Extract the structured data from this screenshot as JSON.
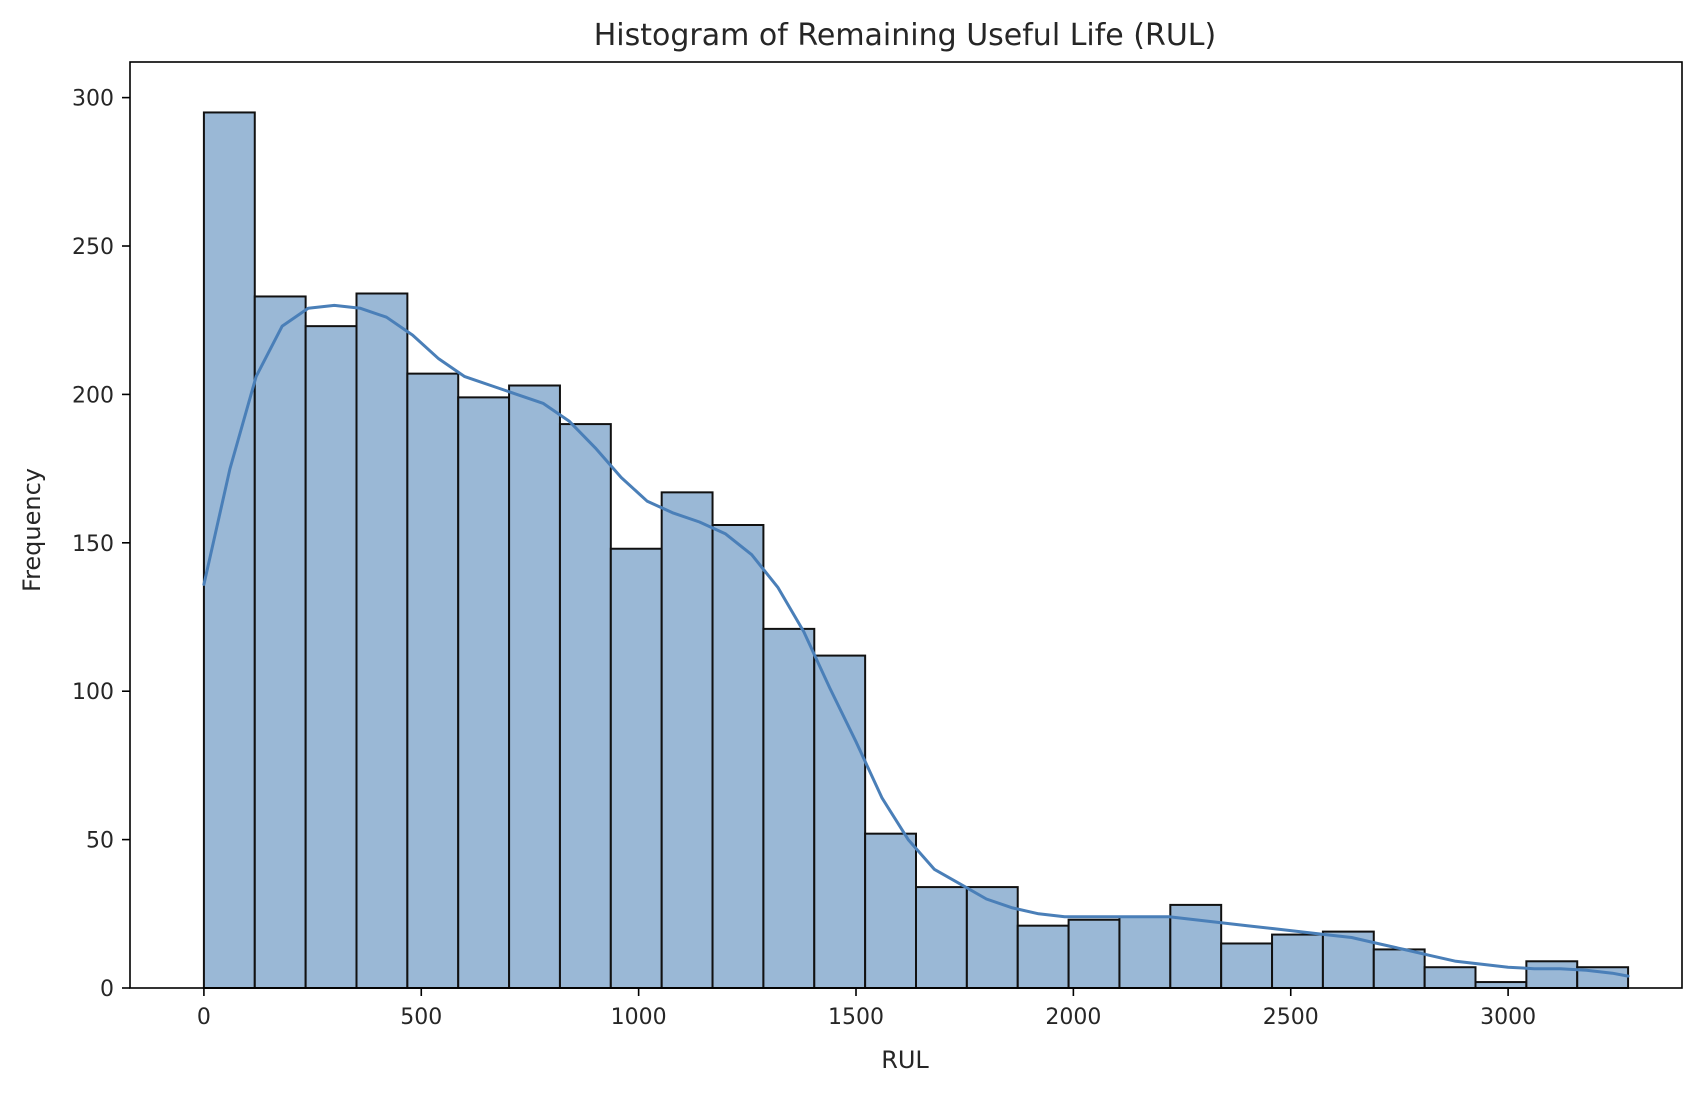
{
  "chart_data": {
    "type": "bar",
    "title": "Histogram of Remaining Useful Life (RUL)",
    "xlabel": "RUL",
    "ylabel": "Frequency",
    "xlim": [
      -170,
      3400
    ],
    "ylim": [
      0,
      312
    ],
    "xticks": [
      0,
      500,
      1000,
      1500,
      2000,
      2500,
      3000
    ],
    "yticks": [
      0,
      50,
      100,
      150,
      200,
      250,
      300
    ],
    "bin_edges": [
      0,
      117,
      234,
      351,
      468,
      585,
      702,
      819,
      936,
      1053,
      1170,
      1287,
      1404,
      1521,
      1638,
      1755,
      1872,
      1989,
      2106,
      2223,
      2340,
      2457,
      2574,
      2691,
      2808,
      2925,
      3042,
      3159,
      3276
    ],
    "values": [
      295,
      233,
      223,
      234,
      207,
      199,
      203,
      190,
      148,
      167,
      156,
      121,
      112,
      52,
      34,
      34,
      21,
      23,
      24,
      28,
      15,
      18,
      19,
      13,
      7,
      2,
      9,
      7
    ],
    "kde": {
      "x": [
        0,
        60,
        120,
        180,
        240,
        300,
        360,
        420,
        480,
        540,
        600,
        660,
        720,
        780,
        840,
        900,
        960,
        1020,
        1080,
        1140,
        1200,
        1260,
        1320,
        1380,
        1440,
        1500,
        1560,
        1620,
        1680,
        1740,
        1800,
        1860,
        1920,
        1980,
        2040,
        2100,
        2160,
        2220,
        2280,
        2340,
        2400,
        2460,
        2520,
        2580,
        2640,
        2700,
        2760,
        2820,
        2880,
        2940,
        3000,
        3060,
        3120,
        3180,
        3240,
        3276
      ],
      "y": [
        136,
        175,
        206,
        223,
        229,
        230,
        229,
        226,
        220,
        212,
        206,
        203,
        200,
        197,
        191,
        182,
        172,
        164,
        160,
        157,
        153,
        146,
        135,
        120,
        101,
        83,
        64,
        50,
        40,
        35,
        30,
        27,
        25,
        24,
        24,
        24,
        24,
        24,
        23,
        22,
        21,
        20,
        19,
        18,
        17,
        15,
        13,
        11,
        9,
        8,
        7,
        6.5,
        6.5,
        6,
        5,
        4
      ]
    },
    "colors": {
      "bar_fill": "#9ab8d6",
      "bar_edge": "#111111",
      "kde_line": "#4a7fb8"
    },
    "grid": false,
    "legend": "none"
  }
}
